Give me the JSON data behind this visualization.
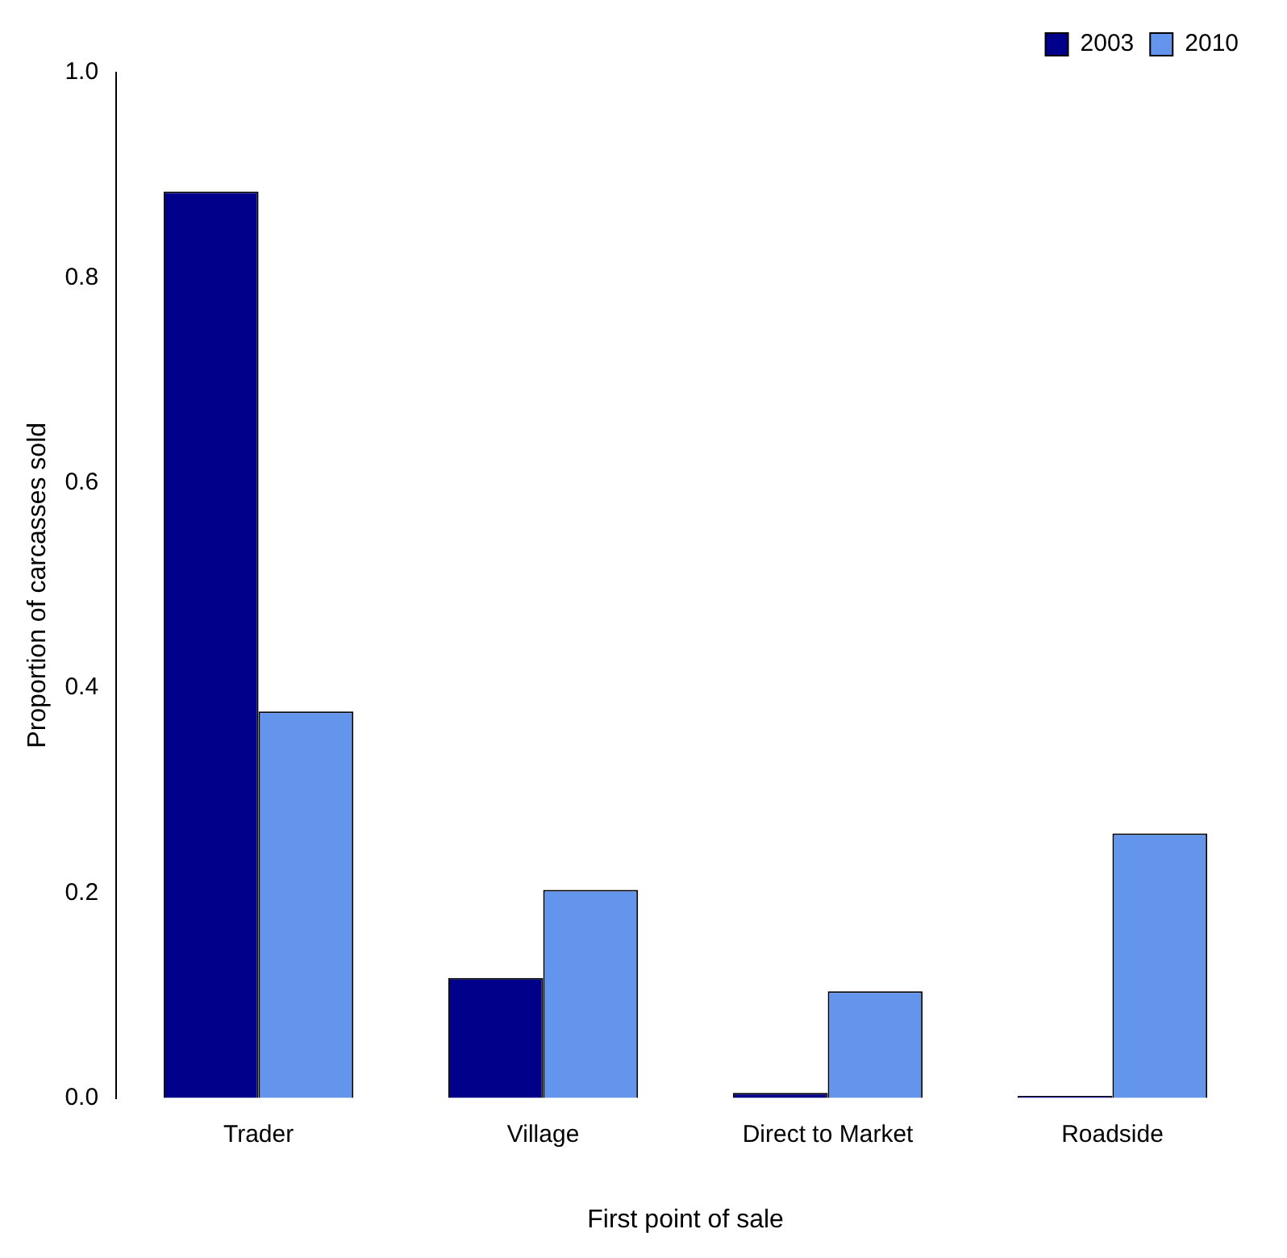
{
  "chart_data": {
    "type": "bar",
    "xlabel": "First point of sale",
    "ylabel": "Proportion of carcasses sold",
    "categories": [
      "Trader",
      "Village",
      "Direct to Market",
      "Roadside"
    ],
    "series": [
      {
        "name": "2003",
        "color": "#00008b",
        "values": [
          0.884,
          0.117,
          0.005,
          0.002
        ]
      },
      {
        "name": "2010",
        "color": "#6495ed",
        "values": [
          0.377,
          0.203,
          0.104,
          0.258
        ]
      }
    ],
    "ylim": [
      0,
      1
    ],
    "yticks": [
      {
        "value": 0,
        "label": "0.0"
      },
      0.2,
      0.4,
      0.6,
      0.8,
      {
        "value": 1,
        "label": "1.0"
      }
    ],
    "grid": false,
    "legend": "top right"
  }
}
